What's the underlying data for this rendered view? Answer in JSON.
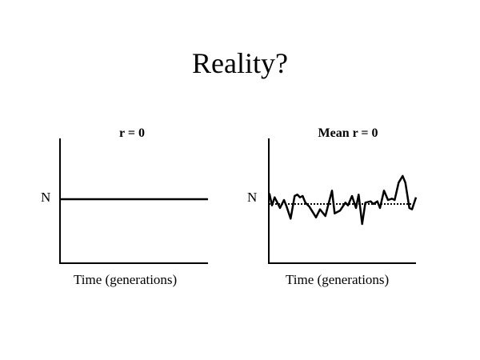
{
  "title": "Reality?",
  "left_panel": {
    "heading": "r = 0",
    "y_label": "N",
    "x_label": "Time (generations)"
  },
  "right_panel": {
    "heading": "Mean r = 0",
    "y_label": "N",
    "x_label": "Time (generations)"
  }
}
